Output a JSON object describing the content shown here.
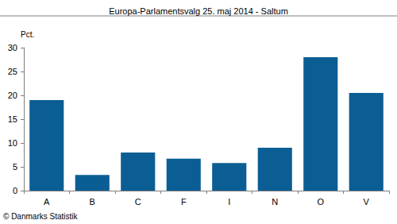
{
  "chart_data": {
    "type": "bar",
    "title": "Europa-Parlamentsvalg 25. maj 2014 - Saltum",
    "ylabel": "Pct.",
    "source": "© Danmarks Statistik",
    "categories": [
      "A",
      "B",
      "C",
      "F",
      "I",
      "N",
      "O",
      "V"
    ],
    "values": [
      19,
      3.3,
      8,
      6.7,
      5.8,
      9,
      28,
      20.5
    ],
    "color": "#0b5e93",
    "ylim": [
      0,
      30
    ],
    "yticks": [
      0,
      5,
      10,
      15,
      20,
      25,
      30
    ],
    "grid": false
  }
}
